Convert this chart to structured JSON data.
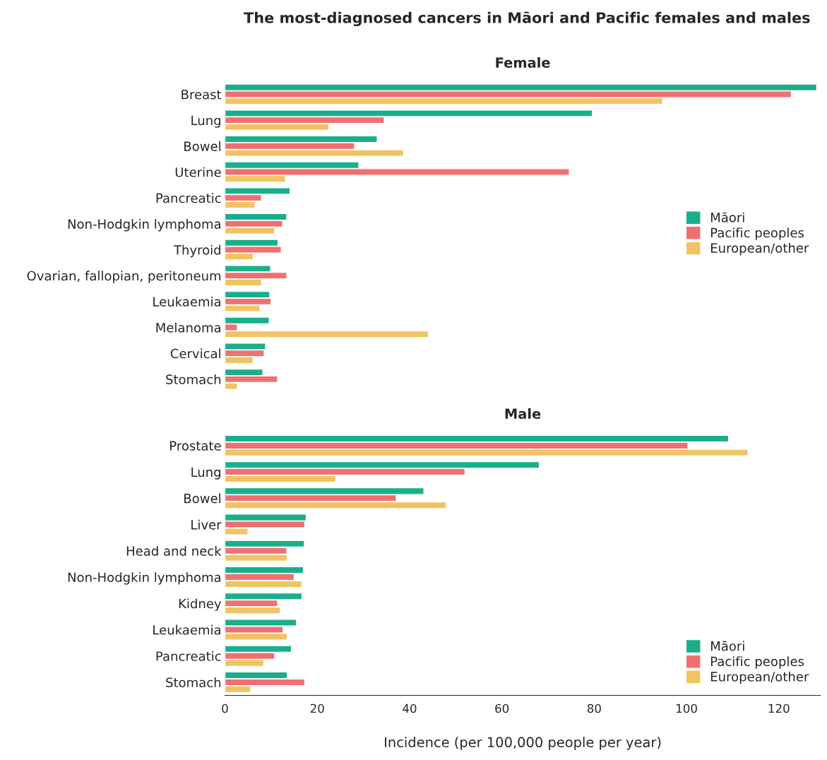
{
  "chart_data": [
    {
      "type": "bar",
      "orientation": "horizontal",
      "title": "The most-diagnosed cancers in Māori and Pacific females and males",
      "subtitle": "Female",
      "categories": [
        "Breast",
        "Lung",
        "Bowel",
        "Uterine",
        "Pancreatic",
        "Non-Hodgkin lymphoma",
        "Thyroid",
        "Ovarian, fallopian, peritoneum",
        "Leukaemia",
        "Melanoma",
        "Cervical",
        "Stomach"
      ],
      "series": [
        {
          "name": "Māori",
          "color": "#1aaf8b",
          "values": [
            128.2,
            79.6,
            33.0,
            29.0,
            14.1,
            13.4,
            11.5,
            9.9,
            9.7,
            9.6,
            8.8,
            8.2
          ]
        },
        {
          "name": "Pacific peoples",
          "color": "#f07070",
          "values": [
            122.7,
            34.5,
            28.1,
            74.6,
            7.9,
            12.5,
            12.2,
            13.4,
            10.0,
            2.7,
            8.5,
            11.4
          ]
        },
        {
          "name": "European/other",
          "color": "#f0c462",
          "values": [
            94.8,
            22.5,
            38.7,
            13.1,
            6.5,
            10.8,
            6.1,
            7.9,
            7.6,
            44.1,
            6.1,
            2.7
          ]
        }
      ],
      "xlim": [
        0,
        129
      ],
      "tick_labels": "y",
      "legend": "right",
      "grid": false
    },
    {
      "type": "bar",
      "orientation": "horizontal",
      "title": "Male",
      "xlabel": "Incidence (per 100,000 people per year)",
      "categories": [
        "Prostate",
        "Lung",
        "Bowel",
        "Liver",
        "Head and neck",
        "Non-Hodgkin lymphoma",
        "Kidney",
        "Leukaemia",
        "Pancreatic",
        "Stomach"
      ],
      "series": [
        {
          "name": "Māori",
          "color": "#1aaf8b",
          "values": [
            109.1,
            68.1,
            43.1,
            17.6,
            17.2,
            17.0,
            16.7,
            15.5,
            14.4,
            13.5
          ]
        },
        {
          "name": "Pacific peoples",
          "color": "#f07070",
          "values": [
            100.3,
            52.0,
            37.1,
            17.3,
            13.4,
            15.0,
            11.4,
            12.6,
            10.8,
            17.3
          ]
        },
        {
          "name": "European/other",
          "color": "#f0c462",
          "values": [
            113.3,
            24.0,
            47.9,
            5.0,
            13.5,
            16.7,
            12.0,
            13.5,
            8.4,
            5.6
          ]
        }
      ],
      "xlim": [
        0,
        129
      ],
      "xticks": [
        0,
        20,
        40,
        60,
        80,
        100,
        120
      ],
      "legend": "bottom right",
      "grid": false
    }
  ]
}
